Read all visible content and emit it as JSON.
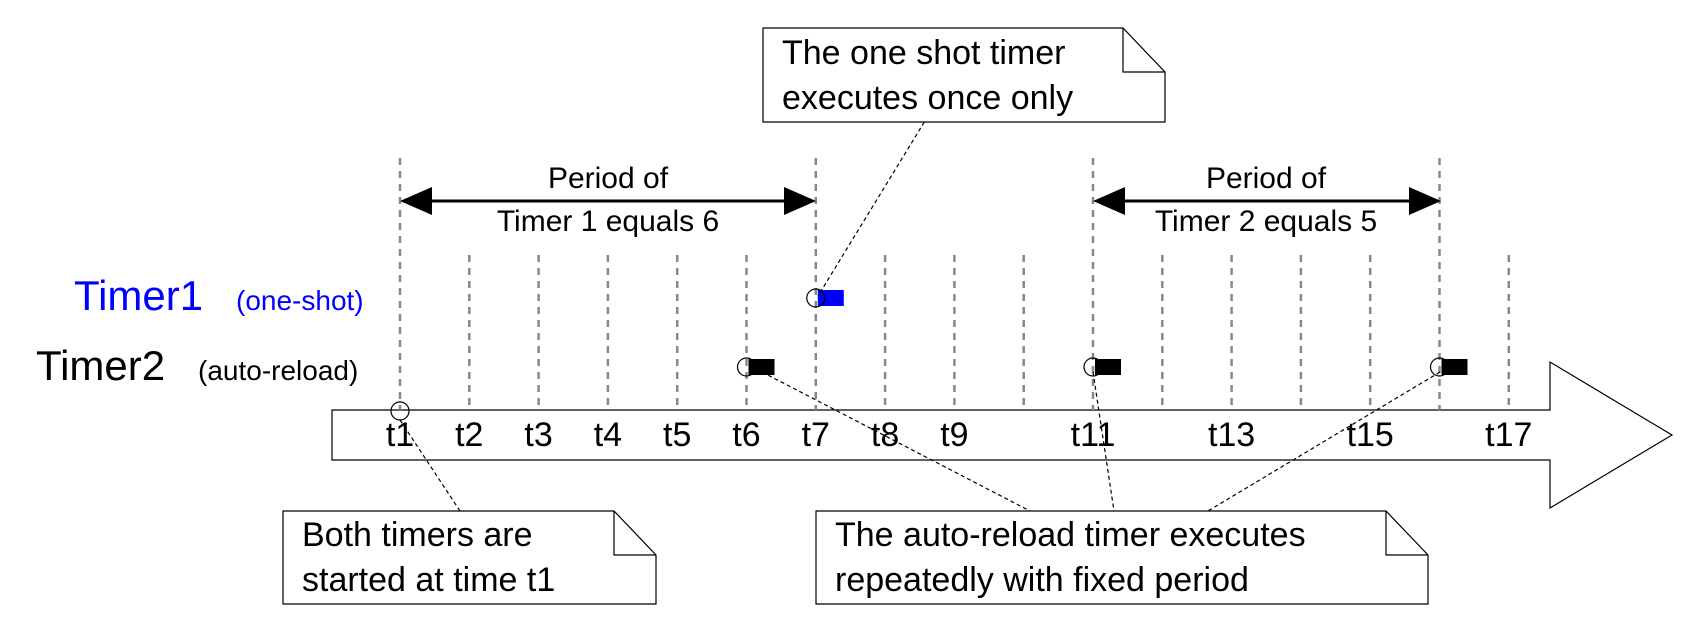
{
  "timers": {
    "timer1": {
      "name": "Timer1",
      "mode": "(one-shot)",
      "color": "#0000ff"
    },
    "timer2": {
      "name": "Timer2",
      "mode": "(auto-reload)",
      "color": "#000000"
    }
  },
  "periods": {
    "timer1": {
      "line1": "Period of",
      "line2": "Timer 1 equals 6"
    },
    "timer2": {
      "line1": "Period of",
      "line2": "Timer 2 equals 5"
    }
  },
  "notes": {
    "one_shot": {
      "line1": "The one shot timer",
      "line2": "executes once only"
    },
    "start": {
      "line1": "Both timers are",
      "line2": "started at time t1"
    },
    "auto_reload": {
      "line1": "The auto-reload timer executes",
      "line2": "repeatedly with fixed period"
    }
  },
  "ticks": [
    "t1",
    "t2",
    "t3",
    "t4",
    "t5",
    "t6",
    "t7",
    "t8",
    "t9",
    "",
    "t11",
    "",
    "t13",
    "",
    "t15",
    "",
    "t17"
  ],
  "timer1_executions": [
    "t7"
  ],
  "timer2_executions": [
    "t6",
    "t11",
    "t16"
  ],
  "colors": {
    "grid": "#888888",
    "line": "#000000",
    "timer1": "#0000ff",
    "timer2": "#000000"
  }
}
